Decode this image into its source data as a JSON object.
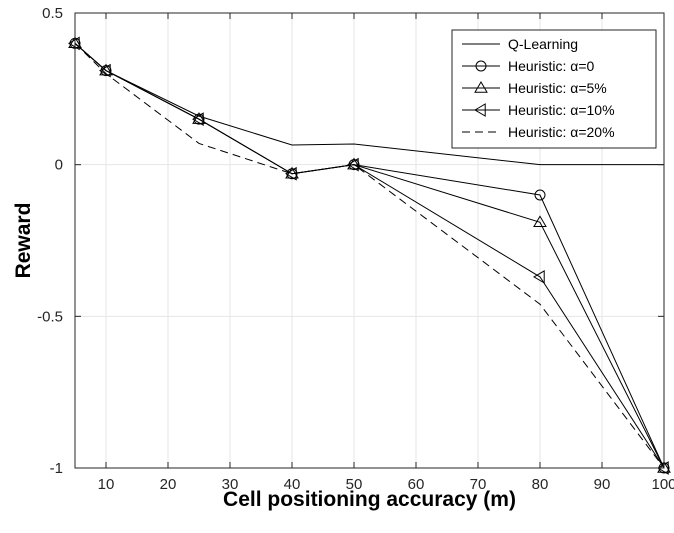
{
  "chart_data": {
    "type": "line",
    "title": "",
    "xlabel": "Cell positioning accuracy (m)",
    "ylabel": "Reward",
    "xlim": [
      5,
      100
    ],
    "ylim": [
      -1,
      0.5
    ],
    "x_ticks": [
      10,
      20,
      30,
      40,
      50,
      60,
      70,
      80,
      90,
      100
    ],
    "y_ticks": [
      -1,
      -0.5,
      0,
      0.5
    ],
    "y_tick_labels": [
      "-1",
      "-0.5",
      "0",
      "0.5"
    ],
    "grid": true,
    "legend_position": "top-right",
    "x": [
      5,
      10,
      25,
      40,
      50,
      80,
      100
    ],
    "series": [
      {
        "name": "Q-Learning",
        "style": "solid",
        "marker": "none",
        "values": [
          0.4,
          0.31,
          0.16,
          0.065,
          0.068,
          0.0,
          0.0
        ]
      },
      {
        "name": "Heuristic: α=0",
        "style": "solid",
        "marker": "circle",
        "values": [
          0.4,
          0.31,
          0.15,
          -0.03,
          0.0,
          -0.1,
          -1.0
        ]
      },
      {
        "name": "Heuristic: α=5%",
        "style": "solid",
        "marker": "triangle-up",
        "values": [
          0.4,
          0.31,
          0.15,
          -0.03,
          0.0,
          -0.19,
          -1.0
        ]
      },
      {
        "name": "Heuristic: α=10%",
        "style": "solid",
        "marker": "triangle-left",
        "values": [
          0.4,
          0.31,
          0.15,
          -0.03,
          0.0,
          -0.37,
          -1.0
        ]
      },
      {
        "name": "Heuristic: α=20%",
        "style": "dashed",
        "marker": "none",
        "values": [
          0.4,
          0.3,
          0.07,
          -0.03,
          0.0,
          -0.46,
          -1.0
        ]
      }
    ]
  }
}
